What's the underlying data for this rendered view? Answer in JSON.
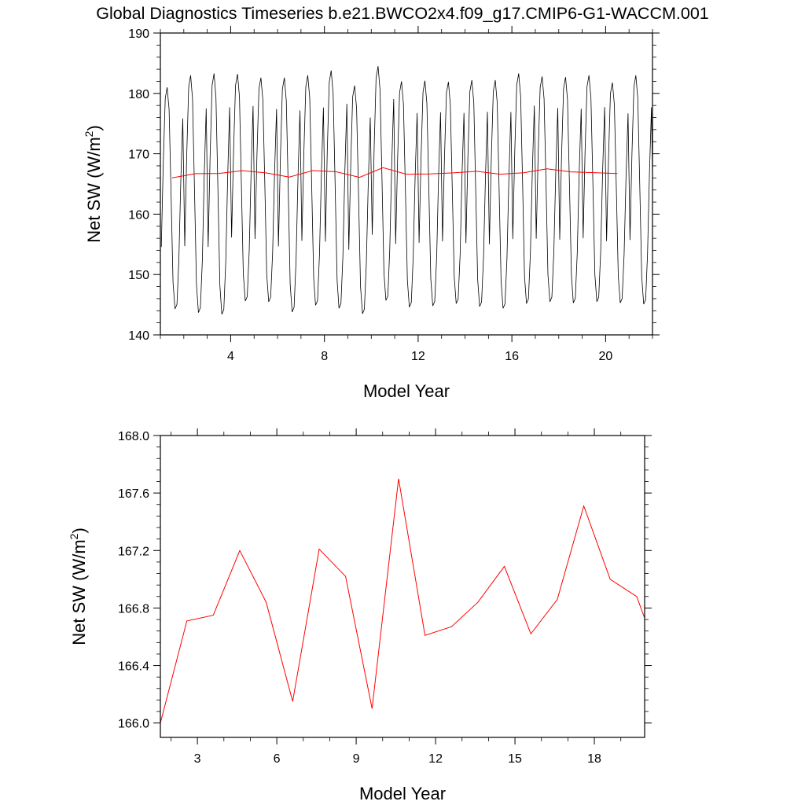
{
  "title": "Global Diagnostics Timeseries b.e21.BWCO2x4.f09_g17.CMIP6-G1-WACCM.001",
  "colors": {
    "monthly": "#000000",
    "annual": "#ff0000",
    "frame": "#000000"
  },
  "chart_data": [
    {
      "type": "line",
      "xlabel": "Model Year",
      "ylabel": "Net SW (W/m",
      "ylabel_sup": "2",
      "ylabel_close": ")",
      "xlim": [
        1,
        22
      ],
      "ylim": [
        140,
        190
      ],
      "xticks": [
        4,
        8,
        12,
        16,
        20
      ],
      "yticks": [
        140,
        150,
        160,
        170,
        180,
        190
      ],
      "grid": false,
      "series": [
        {
          "style": "monthly-cycle",
          "x_start": 1.04,
          "step": 0.0833333,
          "summer_peaks": [
            181,
            183,
            183.3,
            183.2,
            182.6,
            182.6,
            183,
            183.8,
            181.3,
            184.5,
            182,
            182.1,
            181.9,
            182.2,
            182.2,
            183.3,
            182.8,
            182.7,
            183,
            181.8,
            183
          ],
          "winter_troughs": [
            144.3,
            143.7,
            143.4,
            145.6,
            145.5,
            143.8,
            144.9,
            144.4,
            143.5,
            145.7,
            144.6,
            144.8,
            145.2,
            144.7,
            144.4,
            145.2,
            145.5,
            145.3,
            145.5,
            145.3,
            145.1
          ]
        },
        {
          "style": "annual-mean",
          "x": [
            1.5,
            2.5,
            3.5,
            4.5,
            5.5,
            6.5,
            7.5,
            8.5,
            9.5,
            10.5,
            11.5,
            12.5,
            13.5,
            14.5,
            15.5,
            16.5,
            17.5,
            18.5,
            19.5,
            20.5
          ],
          "values": [
            166.0,
            166.71,
            166.75,
            167.2,
            166.84,
            166.15,
            167.21,
            167.02,
            166.1,
            167.7,
            166.61,
            166.67,
            166.84,
            167.09,
            166.62,
            166.86,
            167.51,
            167.0,
            166.88,
            166.73
          ]
        }
      ]
    },
    {
      "type": "line",
      "xlabel": "Model Year",
      "ylabel": "Net SW (W/m",
      "ylabel_sup": "2",
      "ylabel_close": ")",
      "xlim": [
        1.6,
        19.9
      ],
      "ylim": [
        165.9,
        168.0
      ],
      "xticks": [
        3,
        6,
        9,
        12,
        15,
        18
      ],
      "yticks": [
        "166.0",
        "166.4",
        "166.8",
        "167.2",
        "167.6",
        "168.0"
      ],
      "grid": false,
      "series": [
        {
          "style": "annual-mean",
          "x": [
            1.6,
            2.6,
            3.6,
            4.6,
            5.6,
            6.6,
            7.6,
            8.6,
            9.6,
            10.6,
            11.6,
            12.6,
            13.6,
            14.6,
            15.6,
            16.6,
            17.6,
            18.6,
            19.6,
            19.9
          ],
          "values": [
            166.0,
            166.71,
            166.75,
            167.2,
            166.84,
            166.15,
            167.21,
            167.02,
            166.1,
            167.7,
            166.61,
            166.67,
            166.84,
            167.09,
            166.62,
            166.86,
            167.51,
            167.0,
            166.88,
            166.73
          ]
        }
      ]
    }
  ]
}
